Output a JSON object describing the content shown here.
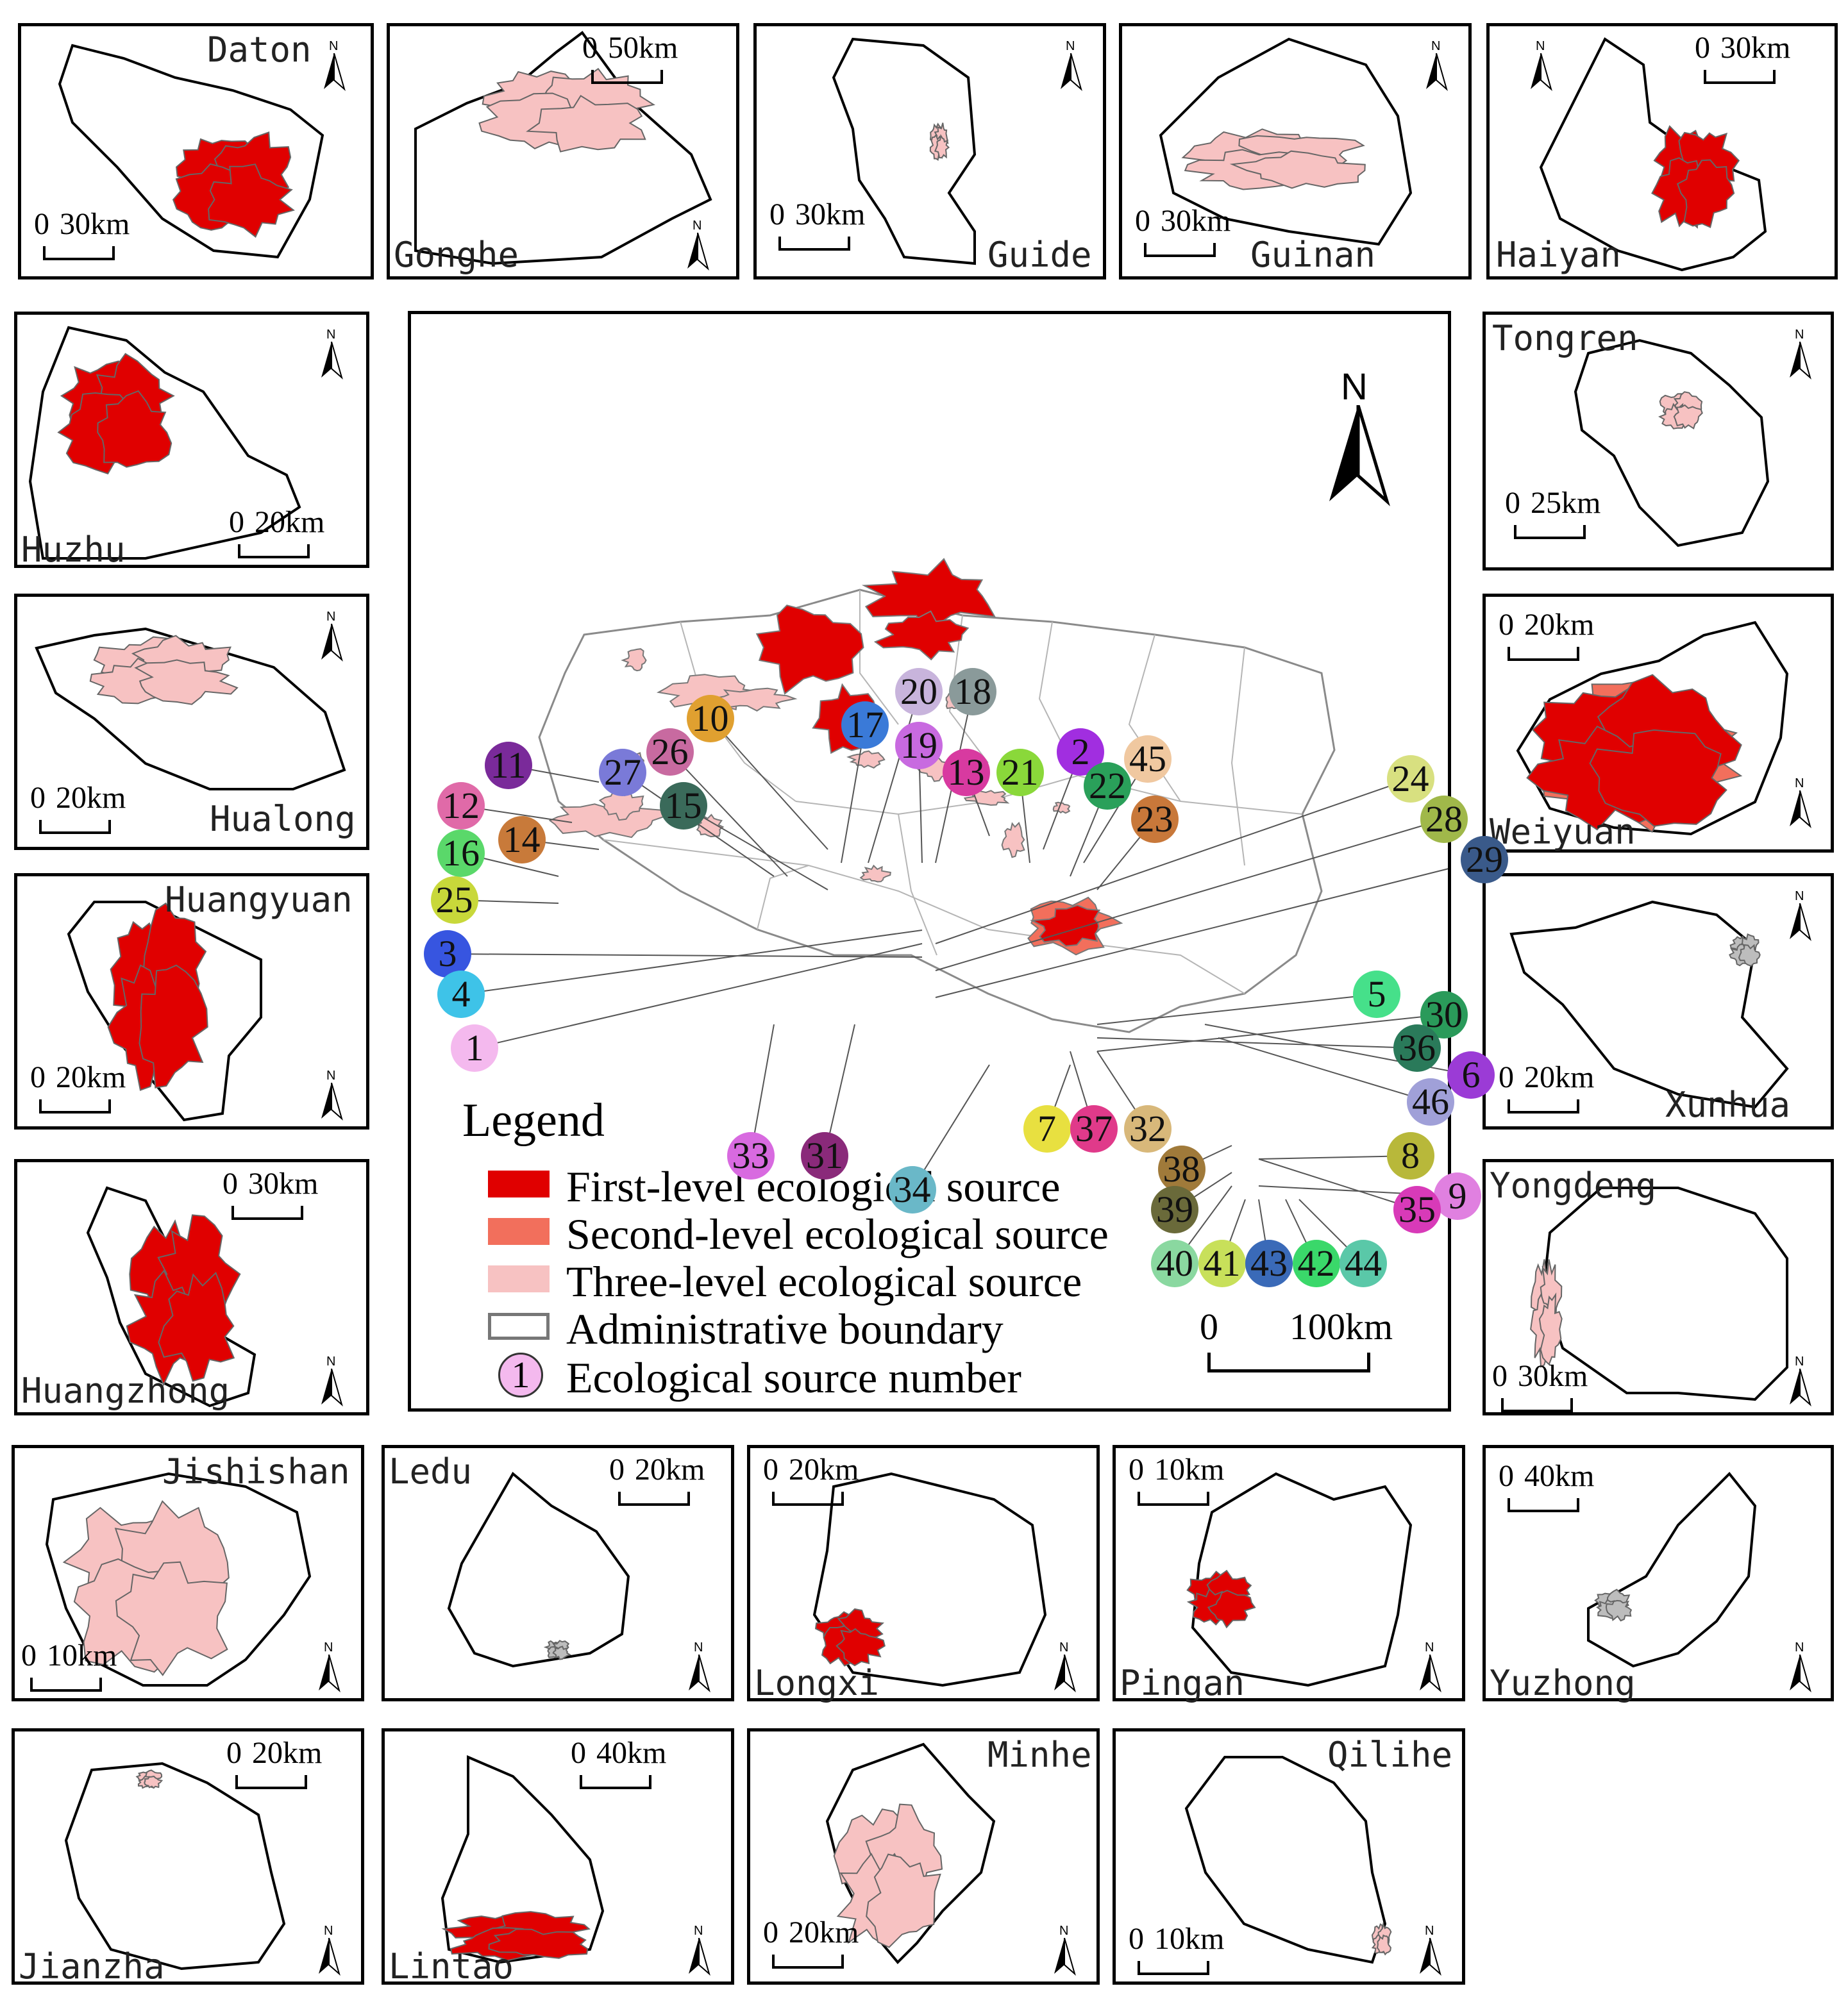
{
  "colors": {
    "first_level": "#e00000",
    "second_level": "#f26f5c",
    "three_level": "#f7c2c2",
    "boundary": "#8a8a8a"
  },
  "main": {
    "north_label": "N",
    "scale": {
      "zero": "0",
      "dist": "100km"
    },
    "legend": {
      "title": "Legend",
      "items": [
        {
          "label": "First-level ecological source"
        },
        {
          "label": "Second-level ecological source"
        },
        {
          "label": "Three-level ecological source"
        },
        {
          "label": "Administrative boundary"
        },
        {
          "label": "Ecological source number",
          "marker": "1"
        }
      ]
    },
    "sources": [
      {
        "num": "1",
        "color": "#f4b9ee"
      },
      {
        "num": "2",
        "color": "#a12ee0"
      },
      {
        "num": "3",
        "color": "#3755e0"
      },
      {
        "num": "4",
        "color": "#3ec3e8"
      },
      {
        "num": "5",
        "color": "#46e08a"
      },
      {
        "num": "6",
        "color": "#9b3bd6"
      },
      {
        "num": "7",
        "color": "#e8e040"
      },
      {
        "num": "8",
        "color": "#b8b83a"
      },
      {
        "num": "9",
        "color": "#e080e0"
      },
      {
        "num": "10",
        "color": "#e0a030"
      },
      {
        "num": "11",
        "color": "#7a2a9a"
      },
      {
        "num": "12",
        "color": "#e06aa8"
      },
      {
        "num": "13",
        "color": "#d83aa0"
      },
      {
        "num": "14",
        "color": "#c87a3a"
      },
      {
        "num": "15",
        "color": "#3a6a5a"
      },
      {
        "num": "16",
        "color": "#5ad86a"
      },
      {
        "num": "17",
        "color": "#3a7ad8"
      },
      {
        "num": "18",
        "color": "#8a9a9a"
      },
      {
        "num": "19",
        "color": "#c86ae0"
      },
      {
        "num": "20",
        "color": "#c8b4dc"
      },
      {
        "num": "21",
        "color": "#8ad83a"
      },
      {
        "num": "22",
        "color": "#2aa05a"
      },
      {
        "num": "23",
        "color": "#c8783a"
      },
      {
        "num": "24",
        "color": "#d8e080"
      },
      {
        "num": "25",
        "color": "#c8d83a"
      },
      {
        "num": "26",
        "color": "#c86aa0"
      },
      {
        "num": "27",
        "color": "#7a7ad8"
      },
      {
        "num": "28",
        "color": "#a0b84a"
      },
      {
        "num": "29",
        "color": "#3a5a8a"
      },
      {
        "num": "30",
        "color": "#2a9a5a"
      },
      {
        "num": "31",
        "color": "#8a2a7a"
      },
      {
        "num": "32",
        "color": "#d8b87a"
      },
      {
        "num": "33",
        "color": "#d86ae0"
      },
      {
        "num": "34",
        "color": "#6ab8c8"
      },
      {
        "num": "35",
        "color": "#d83ab8"
      },
      {
        "num": "36",
        "color": "#2a7a5a"
      },
      {
        "num": "37",
        "color": "#e03a8a"
      },
      {
        "num": "38",
        "color": "#a07a3a"
      },
      {
        "num": "39",
        "color": "#6a6a3a"
      },
      {
        "num": "40",
        "color": "#8ad8a0"
      },
      {
        "num": "41",
        "color": "#c8e05a"
      },
      {
        "num": "42",
        "color": "#3ad86a"
      },
      {
        "num": "43",
        "color": "#3a6ab8"
      },
      {
        "num": "44",
        "color": "#5ac8a8"
      },
      {
        "num": "45",
        "color": "#f0c8a0"
      },
      {
        "num": "46",
        "color": "#a0a0d8"
      }
    ]
  },
  "panels": [
    {
      "name": "Daton",
      "scale": {
        "zero": "0",
        "dist": "30km"
      },
      "source": "first"
    },
    {
      "name": "Gonghe",
      "scale": {
        "zero": "0",
        "dist": "50km"
      },
      "source": "three"
    },
    {
      "name": "Guide",
      "scale": {
        "zero": "0",
        "dist": "30km"
      },
      "source": "three"
    },
    {
      "name": "Guinan",
      "scale": {
        "zero": "0",
        "dist": "30km"
      },
      "source": "three"
    },
    {
      "name": "Haiyan",
      "scale": {
        "zero": "0",
        "dist": "30km"
      },
      "source": "first"
    },
    {
      "name": "Huzhu",
      "scale": {
        "zero": "0",
        "dist": "20km"
      },
      "source": "first"
    },
    {
      "name": "Tongren",
      "scale": {
        "zero": "0",
        "dist": "25km"
      },
      "source": "three"
    },
    {
      "name": "Hualong",
      "scale": {
        "zero": "0",
        "dist": "20km"
      },
      "source": "three"
    },
    {
      "name": "Weiyuan",
      "scale": {
        "zero": "0",
        "dist": "20km"
      },
      "source": "first"
    },
    {
      "name": "Huangyuan",
      "scale": {
        "zero": "0",
        "dist": "20km"
      },
      "source": "first"
    },
    {
      "name": "Xunhua",
      "scale": {
        "zero": "0",
        "dist": "20km"
      },
      "source": "boundary"
    },
    {
      "name": "Huangzhong",
      "scale": {
        "zero": "0",
        "dist": "30km"
      },
      "source": "first"
    },
    {
      "name": "Yongdeng",
      "scale": {
        "zero": "0",
        "dist": "30km"
      },
      "source": "three"
    },
    {
      "name": "Jishishan",
      "scale": {
        "zero": "0",
        "dist": "10km"
      },
      "source": "three"
    },
    {
      "name": "Ledu",
      "scale": {
        "zero": "0",
        "dist": "20km"
      },
      "source": "boundary"
    },
    {
      "name": "Longxi",
      "scale": {
        "zero": "0",
        "dist": "20km"
      },
      "source": "first"
    },
    {
      "name": "Pingan",
      "scale": {
        "zero": "0",
        "dist": "10km"
      },
      "source": "first"
    },
    {
      "name": "Yuzhong",
      "scale": {
        "zero": "0",
        "dist": "40km"
      },
      "source": "boundary"
    },
    {
      "name": "Jianzha",
      "scale": {
        "zero": "0",
        "dist": "20km"
      },
      "source": "three"
    },
    {
      "name": "Lintao",
      "scale": {
        "zero": "0",
        "dist": "40km"
      },
      "source": "first"
    },
    {
      "name": "Minhe",
      "scale": {
        "zero": "0",
        "dist": "20km"
      },
      "source": "three"
    },
    {
      "name": "Qilihe",
      "scale": {
        "zero": "0",
        "dist": "10km"
      },
      "source": "three"
    }
  ]
}
